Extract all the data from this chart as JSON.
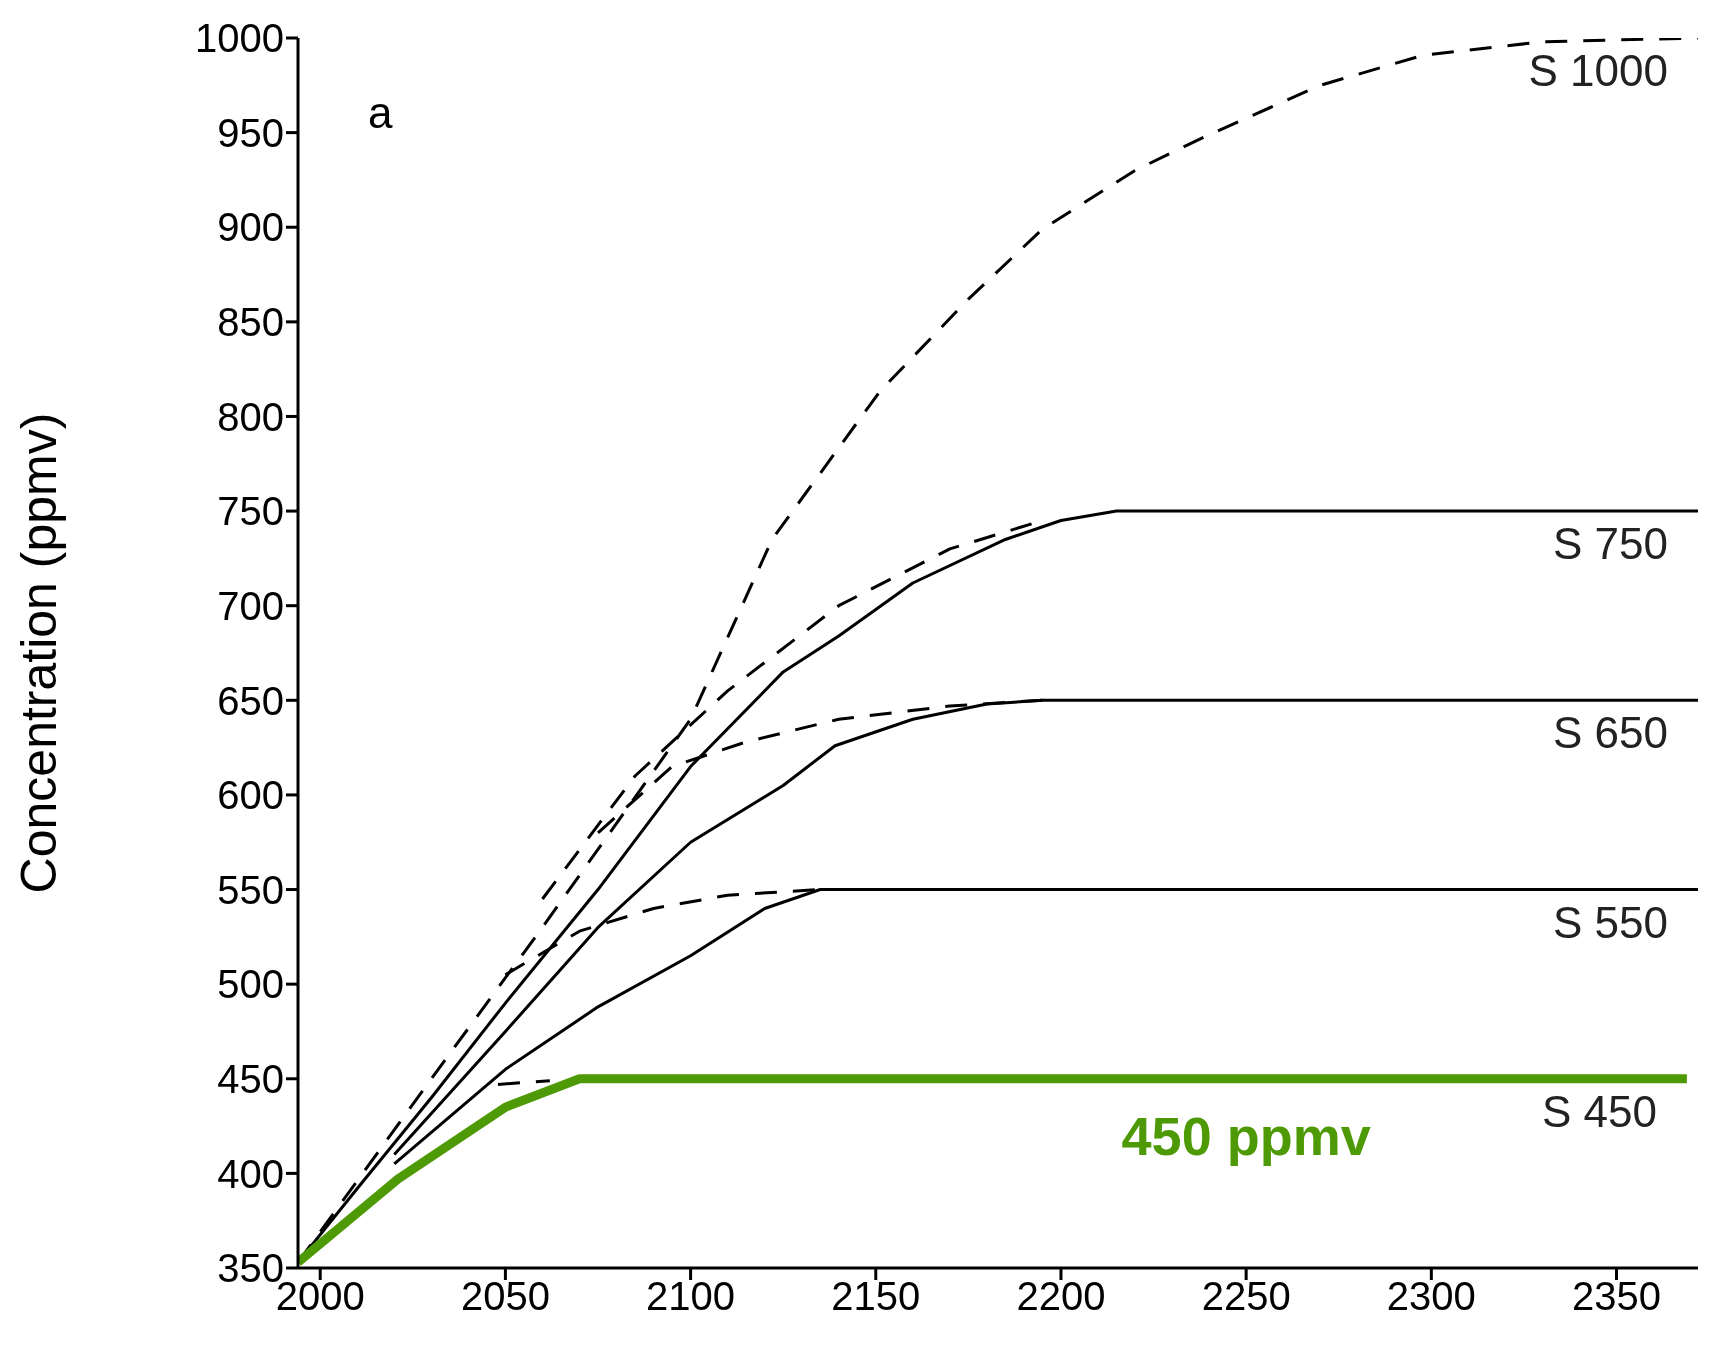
{
  "chart_data": {
    "type": "line",
    "ylabel": "Concentration (ppmv)",
    "xlim": [
      1994,
      2372
    ],
    "ylim": [
      350,
      1000
    ],
    "xticks": [
      2000,
      2050,
      2100,
      2150,
      2200,
      2250,
      2300,
      2350
    ],
    "yticks": [
      350,
      400,
      450,
      500,
      550,
      600,
      650,
      700,
      750,
      800,
      850,
      900,
      950,
      1000
    ],
    "marker": "none",
    "annotations": [
      "a",
      {
        "text": "450 ppmv",
        "x": 2250,
        "y": 450
      }
    ],
    "series": [
      {
        "name": "S 1000",
        "color": "#000000",
        "line_style": "dashed",
        "x": [
          1994,
          2030,
          2060,
          2080,
          2100,
          2122,
          2151,
          2175,
          2195,
          2220,
          2239,
          2270,
          2298,
          2330,
          2372
        ],
        "values": [
          353,
          450,
          530,
          585,
          640,
          735,
          813,
          862,
          899,
          930,
          948,
          975,
          991,
          998,
          1000
        ]
      },
      {
        "name": "S 750",
        "color": "#000000",
        "line_style": "solid",
        "x": [
          1994,
          2010,
          2030,
          2050,
          2075,
          2100,
          2125,
          2140,
          2160,
          2185,
          2200,
          2215,
          2372
        ],
        "values": [
          353,
          392,
          440,
          490,
          550,
          615,
          665,
          684,
          712,
          735,
          745,
          750,
          750
        ]
      },
      {
        "color": "#000000",
        "line_style": "dashed",
        "x": [
          2060,
          2085,
          2110,
          2140,
          2170,
          2195
        ],
        "values": [
          545,
          610,
          655,
          700,
          730,
          745
        ]
      },
      {
        "name": "S 650",
        "color": "#000000",
        "line_style": "solid",
        "x": [
          2020,
          2050,
          2075,
          2100,
          2125,
          2139,
          2160,
          2180,
          2195,
          2372
        ],
        "values": [
          410,
          475,
          530,
          575,
          605,
          626,
          640,
          648,
          650,
          650
        ]
      },
      {
        "color": "#000000",
        "line_style": "dashed",
        "x": [
          2075,
          2095,
          2115,
          2140,
          2170,
          2195
        ],
        "values": [
          580,
          615,
          628,
          640,
          647,
          650
        ]
      },
      {
        "name": "S 550",
        "color": "#000000",
        "line_style": "solid",
        "x": [
          2020,
          2050,
          2075,
          2100,
          2120,
          2135,
          2372
        ],
        "values": [
          405,
          455,
          488,
          515,
          540,
          550,
          550
        ]
      },
      {
        "color": "#000000",
        "line_style": "dashed",
        "x": [
          2050,
          2070,
          2090,
          2110,
          2135
        ],
        "values": [
          505,
          528,
          540,
          547,
          550
        ]
      },
      {
        "color": "#000000",
        "line_style": "dashed",
        "x": [
          2048,
          2062
        ],
        "values": [
          447,
          449
        ]
      },
      {
        "name": "S 450",
        "color": "#4e9a06",
        "line_style": "solid",
        "x": [
          1994,
          2021,
          2050,
          2070,
          2369
        ],
        "values": [
          353,
          397,
          435,
          450,
          450
        ]
      }
    ]
  }
}
